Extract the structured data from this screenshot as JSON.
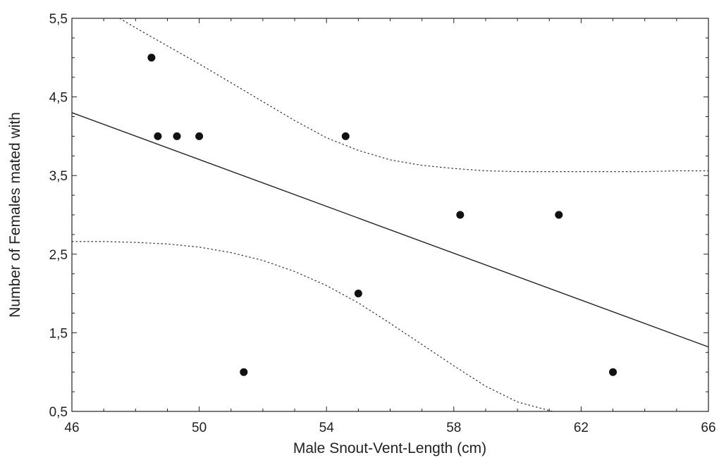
{
  "chart_data": {
    "type": "scatter",
    "title": "",
    "xlabel": "Male Snout-Vent-Length (cm)",
    "ylabel": "Number of Females mated with",
    "xlim": [
      46,
      66
    ],
    "ylim": [
      0.5,
      5.5
    ],
    "x_ticks": [
      46,
      50,
      54,
      58,
      62,
      66
    ],
    "x_tick_labels": [
      "46",
      "50",
      "54",
      "58",
      "62",
      "66"
    ],
    "y_ticks": [
      0.5,
      1.5,
      2.5,
      3.5,
      4.5,
      5.5
    ],
    "y_tick_labels": [
      "0,5",
      "1,5",
      "2,5",
      "3,5",
      "4,5",
      "5,5"
    ],
    "grid": false,
    "points": [
      {
        "x": 48.5,
        "y": 5
      },
      {
        "x": 48.7,
        "y": 4
      },
      {
        "x": 49.3,
        "y": 4
      },
      {
        "x": 50.0,
        "y": 4
      },
      {
        "x": 51.4,
        "y": 1
      },
      {
        "x": 54.6,
        "y": 4
      },
      {
        "x": 55.0,
        "y": 2
      },
      {
        "x": 58.2,
        "y": 3
      },
      {
        "x": 61.3,
        "y": 3
      },
      {
        "x": 63.0,
        "y": 1
      }
    ],
    "regression_line": {
      "x": [
        46,
        66
      ],
      "y": [
        4.3,
        1.32
      ]
    },
    "confidence_band_upper": {
      "x": [
        47.5,
        48,
        49,
        50,
        51,
        52,
        53,
        54,
        55,
        56,
        57,
        58,
        59,
        60,
        61,
        62,
        63,
        64,
        65,
        66
      ],
      "y": [
        5.5,
        5.38,
        5.15,
        4.92,
        4.68,
        4.44,
        4.2,
        3.98,
        3.82,
        3.7,
        3.63,
        3.59,
        3.56,
        3.55,
        3.55,
        3.55,
        3.55,
        3.55,
        3.56,
        3.56
      ]
    },
    "confidence_band_lower": {
      "x": [
        46,
        47,
        48,
        49,
        50,
        51,
        52,
        53,
        54,
        55,
        56,
        57,
        58,
        59,
        60,
        61.1
      ],
      "y": [
        2.66,
        2.66,
        2.65,
        2.63,
        2.59,
        2.52,
        2.42,
        2.28,
        2.1,
        1.88,
        1.62,
        1.35,
        1.08,
        0.82,
        0.62,
        0.5
      ]
    }
  }
}
